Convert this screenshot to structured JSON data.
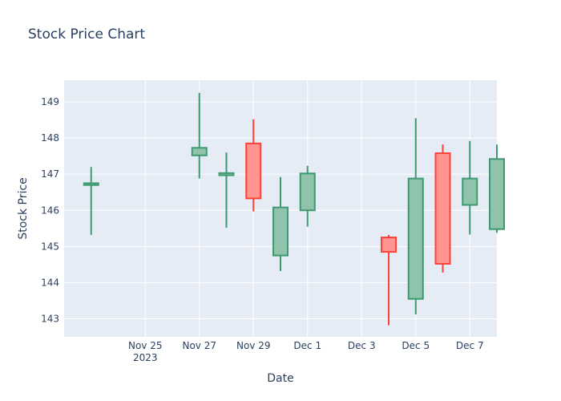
{
  "chart_data": {
    "type": "candlestick",
    "title": "Stock Price Chart",
    "xlabel": "Date",
    "ylabel": "Stock Price",
    "x_range": [
      "2023-11-22",
      "2023-12-08"
    ],
    "ylim": [
      142.5,
      149.6
    ],
    "y_ticks": [
      143,
      144,
      145,
      146,
      147,
      148,
      149
    ],
    "x_ticks": [
      {
        "date": "2023-11-25",
        "label": "Nov 25",
        "sublabel": "2023"
      },
      {
        "date": "2023-11-27",
        "label": "Nov 27"
      },
      {
        "date": "2023-11-29",
        "label": "Nov 29"
      },
      {
        "date": "2023-12-01",
        "label": "Dec 1"
      },
      {
        "date": "2023-12-03",
        "label": "Dec 3"
      },
      {
        "date": "2023-12-05",
        "label": "Dec 5"
      },
      {
        "date": "2023-12-07",
        "label": "Dec 7"
      }
    ],
    "grid": true,
    "colors": {
      "plot_background": "#e5ecf6",
      "increasing_line": "#3d9970",
      "increasing_fill": "#8fc3ab",
      "decreasing_line": "#ff4136",
      "decreasing_fill": "#ff9490",
      "text": "#2a3f5f"
    },
    "candles": [
      {
        "date": "2023-11-23",
        "open": 146.7,
        "high": 147.2,
        "low": 145.32,
        "close": 146.75
      },
      {
        "date": "2023-11-27",
        "open": 147.52,
        "high": 149.25,
        "low": 146.88,
        "close": 147.73
      },
      {
        "date": "2023-11-28",
        "open": 146.97,
        "high": 147.6,
        "low": 145.52,
        "close": 147.03
      },
      {
        "date": "2023-11-29",
        "open": 147.85,
        "high": 148.52,
        "low": 145.97,
        "close": 146.33
      },
      {
        "date": "2023-11-30",
        "open": 144.75,
        "high": 146.92,
        "low": 144.32,
        "close": 146.08
      },
      {
        "date": "2023-12-01",
        "open": 146.0,
        "high": 147.23,
        "low": 145.55,
        "close": 147.02
      },
      {
        "date": "2023-12-04",
        "open": 145.25,
        "high": 145.32,
        "low": 142.82,
        "close": 144.85
      },
      {
        "date": "2023-12-05",
        "open": 143.55,
        "high": 148.55,
        "low": 143.12,
        "close": 146.88
      },
      {
        "date": "2023-12-06",
        "open": 147.58,
        "high": 147.82,
        "low": 144.28,
        "close": 144.52
      },
      {
        "date": "2023-12-07",
        "open": 146.15,
        "high": 147.92,
        "low": 145.33,
        "close": 146.88
      },
      {
        "date": "2023-12-08",
        "open": 145.48,
        "high": 147.82,
        "low": 145.38,
        "close": 147.42
      }
    ]
  }
}
